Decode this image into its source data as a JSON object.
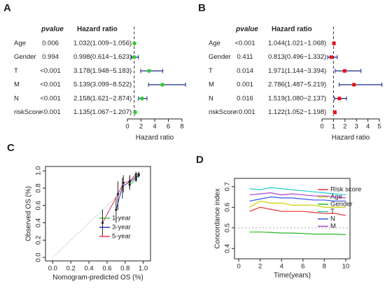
{
  "chart_data": [
    {
      "type": "forest",
      "label": "A",
      "pvalue_header": "pvalue",
      "hr_header": "Hazard ratio",
      "xlabel": "Hazard ratio",
      "categories": [
        "Age",
        "Gender",
        "T",
        "M",
        "N",
        "riskScore"
      ],
      "pvalues": [
        "0.006",
        "0.994",
        "<0.001",
        "<0.001",
        "<0.001",
        "<0.001"
      ],
      "values": [
        1.032,
        0.998,
        3.178,
        5.139,
        2.158,
        1.135
      ],
      "lower": [
        1.009,
        0.614,
        1.948,
        3.099,
        1.621,
        1.067
      ],
      "upper": [
        1.056,
        1.623,
        5.183,
        8.522,
        2.874,
        1.207
      ],
      "value_labels": [
        "1.032(1.009−1.056)",
        "0.998(0.614−1.623)",
        "3.178(1.948−5.183)",
        "5.139(3.099−8.522)",
        "2.158(1.621−2.874)",
        "1.135(1.067−1.207)"
      ],
      "reference": 1,
      "xlim": [
        0,
        8
      ],
      "xticks": [
        0,
        2,
        4,
        6,
        8
      ],
      "marker": "circle",
      "color": "#33cc33",
      "bar_color": "#1a2a8a"
    },
    {
      "type": "forest",
      "label": "B",
      "pvalue_header": "pvalue",
      "hr_header": "Hazard ratio",
      "xlabel": "Hazard ratio",
      "categories": [
        "Age",
        "Gender",
        "T",
        "M",
        "N",
        "riskScore"
      ],
      "pvalues": [
        "<0.001",
        "0.411",
        "0.014",
        "0.001",
        "0.016",
        "<0.001"
      ],
      "values": [
        1.044,
        0.813,
        1.971,
        2.786,
        1.519,
        1.122
      ],
      "lower": [
        1.021,
        0.496,
        1.144,
        1.487,
        1.08,
        1.052
      ],
      "upper": [
        1.068,
        1.332,
        3.394,
        5.219,
        2.137,
        1.198
      ],
      "value_labels": [
        "1.044(1.021−1.068)",
        "0.813(0.496−1.332)",
        "1.971(1.144−3.394)",
        "2.786(1.487−5.219)",
        "1.519(1.080−2.137)",
        "1.122(1.052−1.198)"
      ],
      "reference": 1,
      "xlim": [
        0,
        5
      ],
      "xticks": [
        0,
        1,
        2,
        3,
        4,
        5
      ],
      "marker": "square",
      "color": "#ee1111",
      "bar_color": "#1a2a8a"
    },
    {
      "type": "calibration",
      "label": "C",
      "xlabel": "Nomogram-predicted OS (%)",
      "ylabel": "Observed OS (%)",
      "xlim": [
        -0.08,
        1.08
      ],
      "ylim": [
        -0.04,
        1.05
      ],
      "xticks": [
        {
          "value": 0,
          "label": "0.0"
        },
        0.2,
        0.4,
        0.6,
        0.8,
        {
          "value": 1,
          "label": "1.0"
        }
      ],
      "yticks": [
        {
          "value": 0,
          "label": "0.0"
        },
        0.2,
        0.4,
        0.6,
        0.8,
        {
          "value": 1,
          "label": "1.0"
        }
      ],
      "legend": "bottom-right",
      "series": [
        {
          "name": "1-year",
          "color": "#33cc33",
          "x": [
            0.85,
            0.92,
            0.95
          ],
          "values": [
            0.84,
            0.9,
            0.96
          ],
          "lower": [
            0.78,
            0.87,
            0.93
          ],
          "upper": [
            0.9,
            0.95,
            0.99
          ]
        },
        {
          "name": "3-year",
          "color": "#3333cc",
          "x": [
            0.7,
            0.77,
            0.85,
            0.92,
            0.95
          ],
          "values": [
            0.55,
            0.82,
            0.87,
            0.93,
            0.95
          ],
          "lower": [
            0.4,
            0.68,
            0.8,
            0.88,
            0.92
          ],
          "upper": [
            0.68,
            0.92,
            0.94,
            0.97,
            0.98
          ]
        },
        {
          "name": "5-year",
          "color": "#dd3355",
          "x": [
            0.55,
            0.72,
            0.78,
            0.85,
            0.92
          ],
          "values": [
            0.4,
            0.73,
            0.86,
            0.88,
            0.96
          ],
          "lower": [
            0.25,
            0.55,
            0.75,
            0.82,
            0.93
          ],
          "upper": [
            0.55,
            0.88,
            0.95,
            0.95,
            0.99
          ]
        }
      ]
    },
    {
      "type": "line",
      "label": "D",
      "xlabel": "Time(years)",
      "ylabel": "Concordance index",
      "xlim": [
        -0.4,
        10.4
      ],
      "ylim": [
        0.35,
        0.74
      ],
      "xticks": [
        0,
        2,
        4,
        6,
        8,
        10
      ],
      "yticks": [
        0.4,
        0.5,
        0.6,
        0.7
      ],
      "reference": 0.5,
      "legend": "top-right",
      "x": [
        1,
        2,
        3,
        4,
        5,
        6,
        7,
        8,
        9,
        10
      ],
      "series": [
        {
          "name": "Risk score",
          "color": "#ee3333",
          "values": [
            0.58,
            0.6,
            0.59,
            0.58,
            0.58,
            0.58,
            0.575,
            0.57,
            0.57,
            0.56
          ]
        },
        {
          "name": "Age",
          "color": "#cccc00",
          "values": [
            0.6,
            0.63,
            0.62,
            0.62,
            0.61,
            0.61,
            0.61,
            0.6,
            0.6,
            0.6
          ]
        },
        {
          "name": "Gender",
          "color": "#22bb22",
          "values": [
            0.48,
            0.48,
            0.478,
            0.475,
            0.475,
            0.473,
            0.47,
            0.47,
            0.47,
            0.467
          ]
        },
        {
          "name": "T",
          "color": "#22cccc",
          "values": [
            0.69,
            0.685,
            0.695,
            0.69,
            0.685,
            0.68,
            0.675,
            0.67,
            0.665,
            0.66
          ]
        },
        {
          "name": "N",
          "color": "#3355ee",
          "values": [
            0.63,
            0.64,
            0.65,
            0.645,
            0.645,
            0.64,
            0.635,
            0.635,
            0.63,
            0.63
          ]
        },
        {
          "name": "M",
          "color": "#aa44cc",
          "values": [
            0.66,
            0.665,
            0.67,
            0.66,
            0.665,
            0.66,
            0.655,
            0.655,
            0.65,
            0.645
          ]
        }
      ]
    }
  ]
}
